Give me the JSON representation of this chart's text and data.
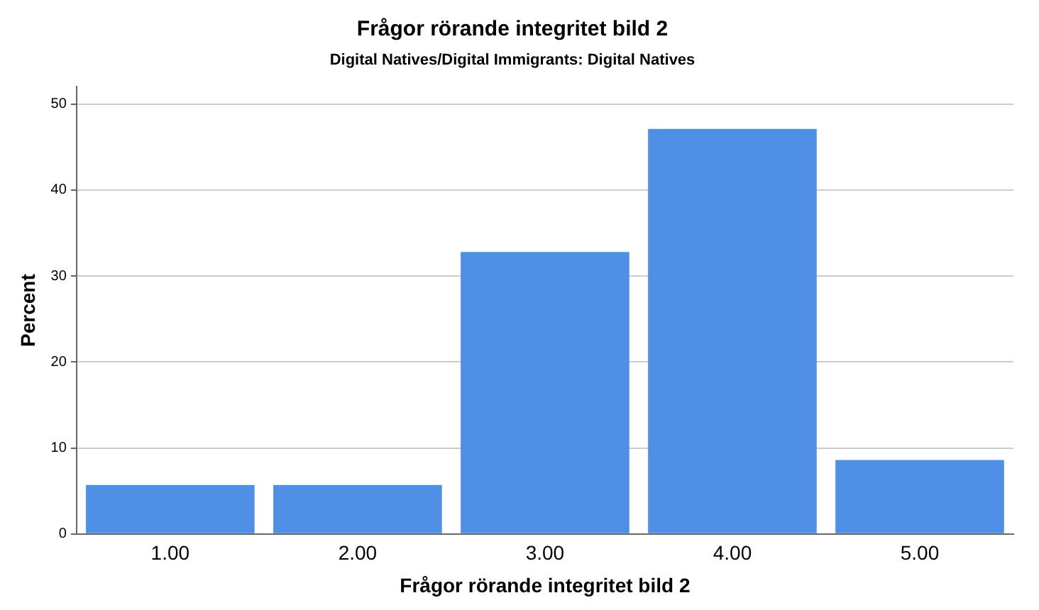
{
  "chart_data": {
    "type": "bar",
    "title": "Frågor rörande integritet bild 2",
    "subtitle": "Digital Natives/Digital Immigrants: Digital Natives",
    "xlabel": "Frågor rörande integritet bild 2",
    "ylabel": "Percent",
    "categories": [
      "1.00",
      "2.00",
      "3.00",
      "4.00",
      "5.00"
    ],
    "values": [
      5.7,
      5.7,
      32.8,
      47.1,
      8.6
    ],
    "color": "#4f90e6",
    "ylim": [
      0,
      52
    ],
    "yticks": [
      0,
      10,
      20,
      30,
      40,
      50
    ],
    "grid": "y"
  }
}
